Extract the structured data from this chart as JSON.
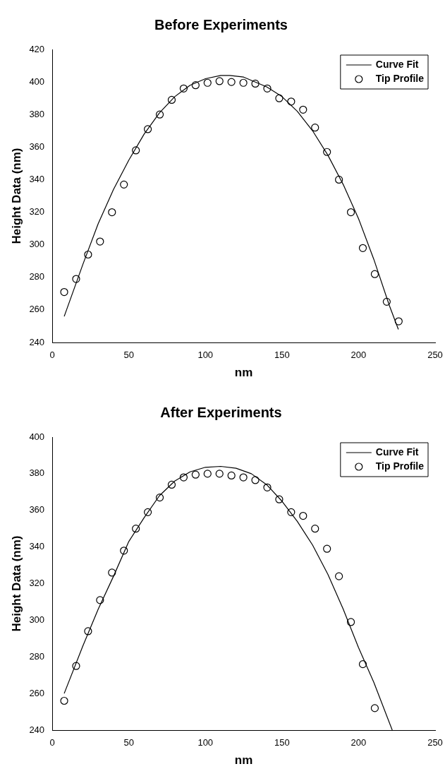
{
  "chart_data": [
    {
      "type": "line",
      "title": "Before Experiments",
      "xlabel": "nm",
      "ylabel": "Height Data (nm)",
      "xlim": [
        0,
        250
      ],
      "xticks": [
        0,
        50,
        100,
        150,
        200,
        250
      ],
      "ylim": [
        240,
        420
      ],
      "yticks": [
        240,
        260,
        280,
        300,
        320,
        340,
        360,
        380,
        400,
        420
      ],
      "grid": false,
      "legend": "top right",
      "series": [
        {
          "name": "Curve Fit",
          "type": "line",
          "color": "#000000",
          "marker": "none",
          "line_style": "solid",
          "x": [
            7.8,
            20,
            30,
            40,
            50,
            60,
            70,
            80,
            90,
            100,
            110,
            116,
            125,
            140,
            150,
            160,
            170,
            180,
            190,
            200,
            210,
            220,
            226
          ],
          "values": [
            256,
            288,
            313,
            334,
            352,
            368,
            381,
            391,
            398,
            402,
            404,
            404,
            403,
            397,
            391,
            382,
            370,
            355,
            337,
            316,
            291,
            263,
            248
          ]
        },
        {
          "name": "Tip Profile",
          "type": "scatter",
          "color": "#000000",
          "marker": "circle",
          "x": [
            7.8,
            15.6,
            23.4,
            31.2,
            39,
            46.8,
            54.6,
            62.4,
            70.2,
            78,
            85.8,
            93.6,
            101.4,
            109.2,
            117,
            124.8,
            132.6,
            140.4,
            148.2,
            156,
            163.8,
            171.6,
            179.4,
            187.2,
            195,
            202.8,
            210.6,
            218.4,
            226.2
          ],
          "values": [
            271,
            279,
            294,
            302,
            320,
            337,
            358,
            371,
            380,
            389,
            396,
            398,
            399.5,
            400.5,
            400,
            399.5,
            399,
            396,
            390,
            388,
            383,
            372,
            357,
            340,
            320,
            298,
            282,
            265,
            253
          ]
        }
      ]
    },
    {
      "type": "line",
      "title": "After Experiments",
      "xlabel": "nm",
      "ylabel": "Height Data (nm)",
      "xlim": [
        0,
        250
      ],
      "xticks": [
        0,
        50,
        100,
        150,
        200,
        250
      ],
      "ylim": [
        240,
        400
      ],
      "yticks": [
        240,
        260,
        280,
        300,
        320,
        340,
        360,
        380,
        400
      ],
      "grid": false,
      "legend": "top right",
      "series": [
        {
          "name": "Curve Fit",
          "type": "line",
          "color": "#000000",
          "marker": "none",
          "line_style": "solid",
          "x": [
            7.8,
            20,
            30,
            40,
            50,
            60,
            70,
            80,
            90,
            100,
            110,
            120,
            130,
            140,
            150,
            160,
            170,
            180,
            190,
            200,
            210,
            222
          ],
          "values": [
            260,
            286,
            306,
            324,
            343,
            356,
            368,
            376,
            381,
            383.5,
            384,
            383,
            380,
            374,
            365,
            354,
            341,
            325,
            306,
            285,
            266,
            240
          ]
        },
        {
          "name": "Tip Profile",
          "type": "scatter",
          "color": "#000000",
          "marker": "circle",
          "x": [
            7.8,
            15.6,
            23.4,
            31.2,
            39,
            46.8,
            54.6,
            62.4,
            70.2,
            78,
            85.8,
            93.6,
            101.4,
            109.2,
            117,
            124.8,
            132.6,
            140.4,
            148.2,
            156,
            163.8,
            171.6,
            179.4,
            187.2,
            195,
            202.8,
            210.6
          ],
          "values": [
            256,
            275,
            294,
            311,
            326,
            338,
            350,
            359,
            367,
            374,
            378,
            379.5,
            380,
            380,
            379,
            378,
            376.5,
            372.5,
            366,
            359,
            357,
            350,
            339,
            324,
            299,
            276,
            252
          ]
        }
      ]
    }
  ]
}
